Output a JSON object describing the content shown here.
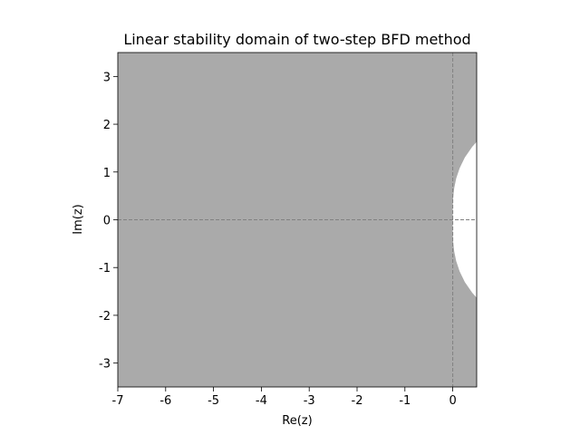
{
  "chart_data": {
    "type": "region",
    "title": "Linear stability domain of two-step BFD method",
    "xlabel": "Re(z)",
    "ylabel": "Im(z)",
    "xlim": [
      -7,
      0.5
    ],
    "ylim": [
      -3.5,
      3.5
    ],
    "xticks": [
      -7,
      -6,
      -5,
      -4,
      -3,
      -2,
      -1,
      0
    ],
    "yticks": [
      -3,
      -2,
      -1,
      0,
      1,
      2,
      3
    ],
    "stable_color": "#aaaaaa",
    "unstable_color": "#ffffff",
    "boundary": {
      "x": [
        0.4949,
        0.4066,
        0.2524,
        0.1432,
        0.072,
        0.0305,
        0.0099,
        0.002,
        0.00013,
        0,
        0.00013,
        0.002,
        0.0099,
        0.0305,
        0.072,
        0.1432,
        0.2524,
        0.4066,
        0.4949
      ],
      "y": [
        -1.6276,
        -1.5263,
        -1.3032,
        -1.0798,
        -0.8645,
        -0.663,
        -0.4783,
        -0.3087,
        -0.1511,
        0,
        0.1511,
        0.3087,
        0.4783,
        0.663,
        0.8645,
        1.0798,
        1.3032,
        1.5263,
        1.6276
      ]
    },
    "reference_lines": {
      "x": [
        0
      ],
      "y": [
        0
      ],
      "color": "#808080"
    }
  }
}
